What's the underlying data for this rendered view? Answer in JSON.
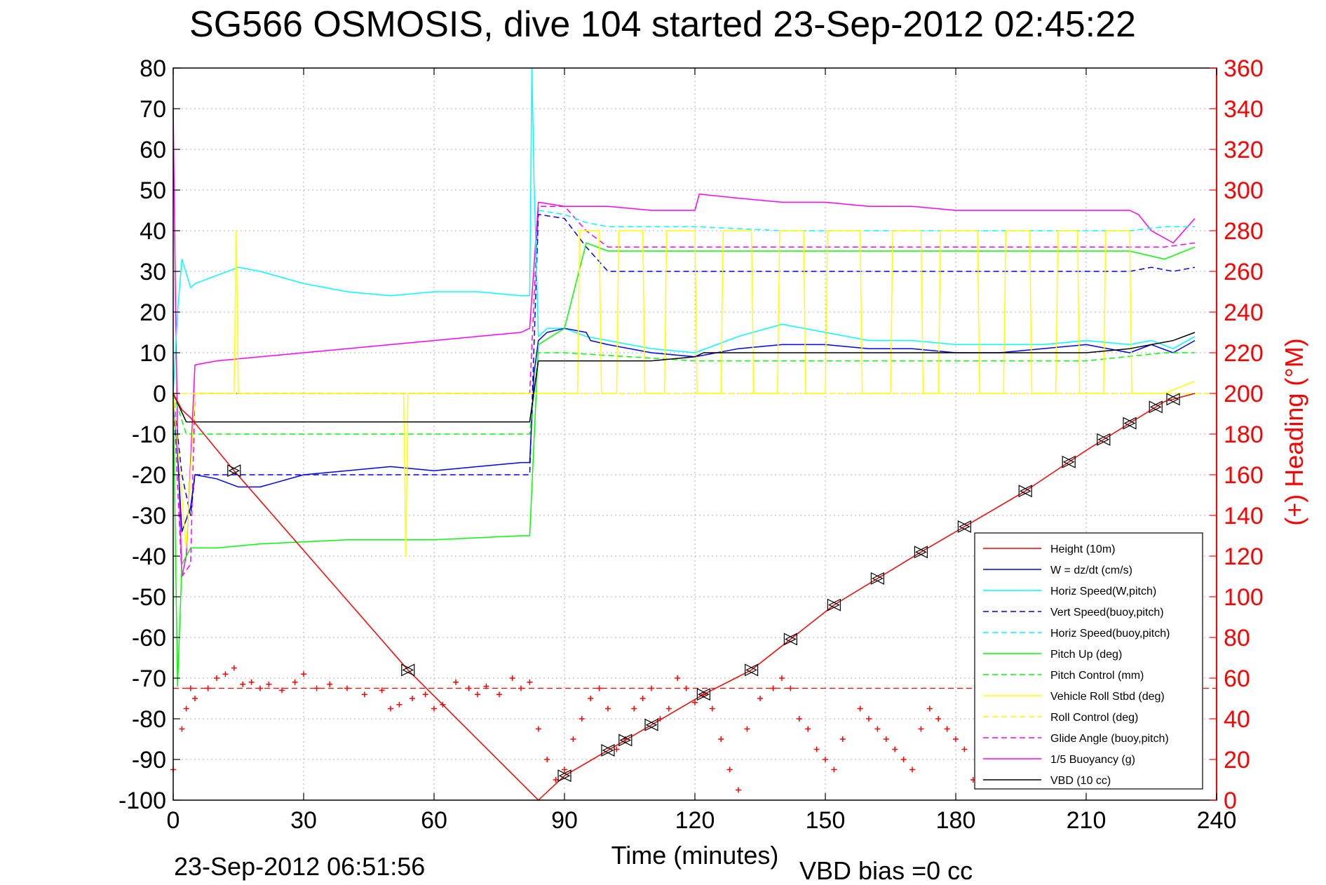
{
  "title": "SG566 OSMOSIS, dive 104 started 23-Sep-2012 02:45:22",
  "footer": {
    "timestamp": "23-Sep-2012 06:51:56",
    "vbd_bias": "VBD bias =0 cc"
  },
  "chart_data": {
    "type": "line",
    "title": "SG566 OSMOSIS, dive 104 started 23-Sep-2012 02:45:22",
    "xlabel": "Time (minutes)",
    "ylabel": "",
    "y2label": "(+) Heading (°M)",
    "xlim": [
      0,
      240
    ],
    "ylim": [
      -100,
      80
    ],
    "y2lim": [
      0,
      360
    ],
    "xticks": [
      "0",
      "30",
      "60",
      "90",
      "120",
      "150",
      "180",
      "210",
      "240"
    ],
    "yticks": [
      "80",
      "70",
      "60",
      "50",
      "40",
      "30",
      "20",
      "10",
      "0",
      "-10",
      "-20",
      "-30",
      "-40",
      "-50",
      "-60",
      "-70",
      "-80",
      "-90",
      "-100"
    ],
    "y2ticks": [
      "360",
      "340",
      "320",
      "300",
      "280",
      "260",
      "240",
      "220",
      "200",
      "180",
      "160",
      "140",
      "120",
      "100",
      "80",
      "60",
      "40",
      "20",
      "0"
    ],
    "grid": true,
    "legend_position": "bottom-right",
    "series": [
      {
        "name": "Height (10m)",
        "color": "#ff0000",
        "dash": "solid",
        "x": [
          0,
          2,
          4,
          14,
          54,
          84,
          90,
          122,
          133,
          152,
          172,
          196,
          210,
          228,
          235
        ],
        "y": [
          0,
          -4,
          -6,
          -19,
          -68,
          -100,
          -94,
          -74,
          -68,
          -52,
          -39,
          -24,
          -14,
          -2,
          0
        ]
      },
      {
        "name": "W = dz/dt (cm/s)",
        "color": "#0000ff",
        "dash": "solid",
        "x": [
          0,
          1,
          2,
          4,
          5,
          10,
          15,
          20,
          30,
          40,
          50,
          60,
          70,
          80,
          82,
          83,
          84,
          86,
          90,
          95,
          96,
          100,
          110,
          120,
          130,
          140,
          150,
          160,
          170,
          180,
          190,
          200,
          210,
          220,
          225,
          230,
          235
        ],
        "y": [
          0,
          -15,
          -34,
          -28,
          -20,
          -21,
          -23,
          -23,
          -20,
          -19,
          -18,
          -19,
          -18,
          -17,
          -17,
          5,
          13,
          15,
          16,
          15,
          13,
          12,
          10,
          9,
          11,
          12,
          12,
          11,
          11,
          10,
          10,
          11,
          12,
          10,
          12,
          10,
          13
        ]
      },
      {
        "name": "Horiz Speed(W,pitch)",
        "color": "#00ffff",
        "dash": "solid",
        "x": [
          0,
          1,
          2,
          4,
          5,
          10,
          15,
          20,
          30,
          40,
          50,
          60,
          70,
          80,
          82,
          82.5,
          83,
          84,
          86,
          90,
          95,
          100,
          110,
          120,
          130,
          140,
          150,
          160,
          170,
          180,
          190,
          200,
          210,
          220,
          225,
          230,
          235
        ],
        "y": [
          0,
          20,
          33,
          26,
          27,
          29,
          31,
          30,
          27,
          25,
          24,
          25,
          25,
          24,
          24,
          80,
          52,
          14,
          16,
          16,
          14,
          13,
          11,
          10,
          14,
          17,
          15,
          13,
          13,
          12,
          12,
          12,
          13,
          12,
          13,
          11,
          14
        ]
      },
      {
        "name": "Vert Speed(buoy,pitch)",
        "color": "#0000ff",
        "dash": "dashed",
        "x": [
          0,
          2,
          4,
          5,
          82,
          84,
          90,
          95,
          100,
          110,
          120,
          130,
          140,
          150,
          160,
          170,
          180,
          190,
          200,
          210,
          220,
          225,
          230,
          235
        ],
        "y": [
          0,
          -20,
          -30,
          -20,
          -20,
          44,
          43,
          36,
          30,
          30,
          30,
          30,
          30,
          30,
          30,
          30,
          30,
          30,
          30,
          30,
          30,
          31,
          30,
          31
        ]
      },
      {
        "name": "Horiz Speed(buoy,pitch)",
        "color": "#00ffff",
        "dash": "dashed",
        "x": [
          84,
          90,
          95,
          100,
          120,
          140,
          160,
          180,
          200,
          220,
          228,
          235
        ],
        "y": [
          45,
          44,
          42,
          41,
          41,
          40,
          40,
          40,
          40,
          40,
          41,
          41
        ]
      },
      {
        "name": "Pitch Up (deg)",
        "color": "#00ff00",
        "dash": "solid",
        "x": [
          0,
          1,
          2,
          4,
          5,
          10,
          20,
          40,
          60,
          80,
          82,
          84,
          90,
          95,
          100,
          120,
          140,
          160,
          180,
          200,
          220,
          228,
          235
        ],
        "y": [
          0,
          -72,
          -42,
          -38,
          -38,
          -38,
          -37,
          -36,
          -36,
          -35,
          -35,
          12,
          16,
          37,
          35,
          35,
          35,
          35,
          35,
          35,
          35,
          33,
          36
        ]
      },
      {
        "name": "Pitch Control (mm)",
        "color": "#00ff00",
        "dash": "dashed",
        "x": [
          0,
          3,
          5,
          82,
          84,
          90,
          120,
          150,
          180,
          210,
          228,
          235
        ],
        "y": [
          0,
          -10,
          -10,
          -10,
          10,
          10,
          8,
          8,
          8,
          8,
          10,
          10
        ]
      },
      {
        "name": "Vehicle Roll Stbd (deg)",
        "color": "#ffff00",
        "dash": "solid",
        "x": [
          0,
          3,
          5,
          14,
          14.5,
          15,
          53,
          53.5,
          54,
          82,
          84,
          90,
          93,
          93.5,
          98,
          98.5,
          102,
          102.5,
          108,
          108.5,
          113,
          113.5,
          120,
          120.5,
          126,
          126.5,
          133,
          133.5,
          139,
          139.5,
          145,
          145.5,
          150,
          150.5,
          158,
          158.5,
          165,
          165.5,
          172,
          172.5,
          176,
          176.5,
          185,
          185.5,
          191,
          191.5,
          197,
          197.5,
          203,
          203.5,
          208,
          208.5,
          214,
          214.5,
          220,
          220.5,
          228,
          235
        ],
        "y": [
          0,
          -38,
          0,
          0,
          40,
          0,
          0,
          -40,
          0,
          0,
          0,
          0,
          0,
          40,
          40,
          0,
          0,
          40,
          40,
          0,
          0,
          40,
          40,
          0,
          0,
          40,
          40,
          0,
          0,
          40,
          40,
          0,
          0,
          40,
          40,
          0,
          0,
          40,
          40,
          0,
          0,
          40,
          40,
          0,
          0,
          40,
          40,
          0,
          0,
          40,
          40,
          0,
          0,
          40,
          40,
          0,
          0,
          3
        ]
      },
      {
        "name": "Roll Control (deg)",
        "color": "#ffff00",
        "dash": "dashed",
        "x": [
          0,
          240
        ],
        "y": [
          0,
          0
        ]
      },
      {
        "name": "Glide Angle (buoy,pitch)",
        "color": "#ff00ff",
        "dash": "dashed",
        "x": [
          0,
          2,
          4,
          5,
          82,
          84,
          90,
          95,
          100,
          120,
          140,
          160,
          180,
          200,
          220,
          228,
          235
        ],
        "y": [
          0,
          -45,
          -42,
          0,
          0,
          46,
          46,
          40,
          36,
          36,
          36,
          36,
          36,
          36,
          36,
          36,
          37
        ]
      },
      {
        "name": "1/5 Buoyancy (g)",
        "color": "#ff00ff",
        "dash": "solid",
        "x": [
          0,
          0.5,
          1,
          2,
          3,
          5,
          10,
          20,
          30,
          40,
          50,
          60,
          70,
          80,
          82,
          84,
          90,
          100,
          110,
          120,
          121,
          130,
          140,
          150,
          160,
          170,
          180,
          190,
          200,
          210,
          220,
          222,
          225,
          230,
          235
        ],
        "y": [
          70,
          25,
          -10,
          -45,
          -40,
          7,
          8,
          9,
          10,
          11,
          12,
          13,
          14,
          15,
          16,
          47,
          46,
          46,
          45,
          45,
          49,
          48,
          47,
          47,
          46,
          46,
          45,
          45,
          45,
          45,
          45,
          44,
          40,
          37,
          43
        ]
      },
      {
        "name": "VBD (10 cc)",
        "color": "#000000",
        "dash": "solid",
        "x": [
          0,
          3,
          5,
          82,
          84,
          90,
          110,
          120,
          122,
          150,
          180,
          210,
          220,
          225,
          230,
          235
        ],
        "y": [
          0,
          -7,
          -7,
          -7,
          8,
          8,
          8,
          9,
          10,
          10,
          10,
          10,
          11,
          12,
          13,
          15
        ]
      }
    ],
    "heading": {
      "name": "Heading (red crosses, right axis)",
      "color": "#ff0000",
      "target_heading": 55,
      "x": [
        0,
        2,
        3,
        4,
        5,
        8,
        10,
        12,
        14,
        16,
        18,
        20,
        22,
        25,
        28,
        30,
        33,
        36,
        40,
        44,
        48,
        50,
        52,
        55,
        58,
        60,
        62,
        65,
        68,
        70,
        72,
        75,
        78,
        80,
        82,
        84,
        86,
        88,
        90,
        92,
        94,
        96,
        98,
        100,
        102,
        104,
        106,
        108,
        110,
        112,
        114,
        116,
        118,
        120,
        122,
        124,
        126,
        128,
        130,
        132,
        135,
        138,
        140,
        142,
        144,
        146,
        148,
        150,
        152,
        154,
        158,
        160,
        162,
        164,
        166,
        168,
        170,
        172,
        174,
        176,
        178,
        180,
        182,
        184
      ],
      "y": [
        15,
        35,
        45,
        55,
        50,
        55,
        60,
        62,
        65,
        57,
        58,
        55,
        57,
        54,
        58,
        62,
        55,
        57,
        55,
        52,
        54,
        45,
        47,
        50,
        52,
        45,
        47,
        58,
        55,
        52,
        56,
        52,
        60,
        55,
        58,
        35,
        20,
        10,
        15,
        30,
        40,
        50,
        55,
        45,
        25,
        30,
        45,
        50,
        55,
        40,
        45,
        60,
        55,
        48,
        52,
        45,
        30,
        15,
        5,
        35,
        50,
        55,
        60,
        55,
        40,
        35,
        25,
        20,
        15,
        30,
        45,
        40,
        35,
        30,
        25,
        20,
        15,
        35,
        45,
        40,
        35,
        30,
        25,
        10
      ]
    }
  }
}
